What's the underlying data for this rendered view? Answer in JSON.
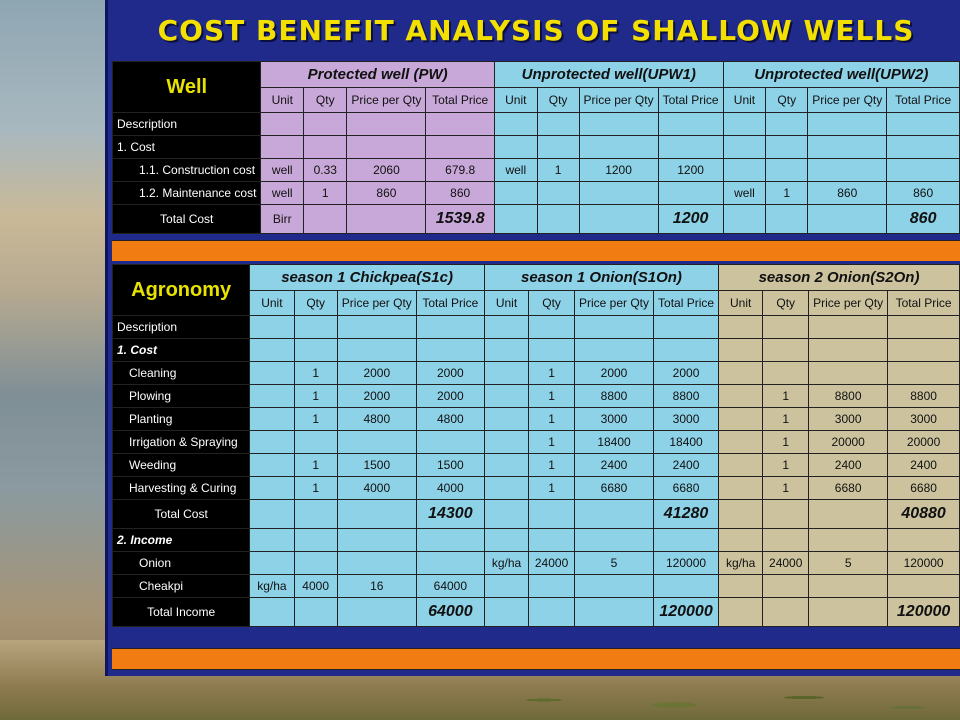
{
  "title": "COST BENEFIT ANALYSIS OF SHALLOW WELLS",
  "well": {
    "section_label": "Well",
    "groups": [
      "Protected well (PW)",
      "Unprotected well(UPW1)",
      "Unprotected well(UPW2)"
    ],
    "sub_headers": [
      "Unit",
      "Qty",
      "Price per Qty",
      "Total Price"
    ],
    "rows": [
      {
        "label": "Description",
        "cells": [
          "",
          "",
          "",
          "",
          "",
          "",
          "",
          "",
          "",
          "",
          "",
          ""
        ]
      },
      {
        "label": "1. Cost",
        "cells": [
          "",
          "",
          "",
          "",
          "",
          "",
          "",
          "",
          "",
          "",
          "",
          ""
        ]
      },
      {
        "label": "1.1. Construction cost",
        "cells": [
          "well",
          "0.33",
          "2060",
          "679.8",
          "well",
          "1",
          "1200",
          "1200",
          "",
          "",
          "",
          ""
        ]
      },
      {
        "label": "1.2. Maintenance cost",
        "cells": [
          "well",
          "1",
          "860",
          "860",
          "",
          "",
          "",
          "",
          "well",
          "1",
          "860",
          "860"
        ]
      },
      {
        "label": "Total Cost",
        "cells": [
          "Birr",
          "",
          "",
          "1539.8",
          "",
          "",
          "",
          "1200",
          "",
          "",
          "",
          "860"
        ]
      }
    ]
  },
  "agronomy": {
    "section_label": "Agronomy",
    "groups": [
      "season 1 Chickpea(S1c)",
      "season 1 Onion(S1On)",
      "season 2 Onion(S2On)"
    ],
    "sub_headers": [
      "Unit",
      "Qty",
      "Price per Qty",
      "Total Price"
    ],
    "rows": [
      {
        "label": "Description",
        "cells": [
          "",
          "",
          "",
          "",
          "",
          "",
          "",
          "",
          "",
          "",
          "",
          ""
        ]
      },
      {
        "label": "1. Cost",
        "cells": [
          "",
          "",
          "",
          "",
          "",
          "",
          "",
          "",
          "",
          "",
          "",
          ""
        ]
      },
      {
        "label": "Cleaning",
        "cells": [
          "",
          "1",
          "2000",
          "2000",
          "",
          "1",
          "2000",
          "2000",
          "",
          "",
          "",
          ""
        ]
      },
      {
        "label": "Plowing",
        "cells": [
          "",
          "1",
          "2000",
          "2000",
          "",
          "1",
          "8800",
          "8800",
          "",
          "1",
          "8800",
          "8800"
        ]
      },
      {
        "label": "Planting",
        "cells": [
          "",
          "1",
          "4800",
          "4800",
          "",
          "1",
          "3000",
          "3000",
          "",
          "1",
          "3000",
          "3000"
        ]
      },
      {
        "label": "Irrigation & Spraying",
        "cells": [
          "",
          "",
          "",
          "",
          "",
          "1",
          "18400",
          "18400",
          "",
          "1",
          "20000",
          "20000"
        ]
      },
      {
        "label": "Weeding",
        "cells": [
          "",
          "1",
          "1500",
          "1500",
          "",
          "1",
          "2400",
          "2400",
          "",
          "1",
          "2400",
          "2400"
        ]
      },
      {
        "label": "Harvesting & Curing",
        "cells": [
          "",
          "1",
          "4000",
          "4000",
          "",
          "1",
          "6680",
          "6680",
          "",
          "1",
          "6680",
          "6680"
        ]
      },
      {
        "label": "Total Cost",
        "cells": [
          "",
          "",
          "",
          "14300",
          "",
          "",
          "",
          "41280",
          "",
          "",
          "",
          "40880"
        ]
      },
      {
        "label": "2. Income",
        "cells": [
          "",
          "",
          "",
          "",
          "",
          "",
          "",
          "",
          "",
          "",
          "",
          ""
        ]
      },
      {
        "label": "Onion",
        "cells": [
          "",
          "",
          "",
          "",
          "kg/ha",
          "24000",
          "5",
          "120000",
          "kg/ha",
          "24000",
          "5",
          "120000"
        ]
      },
      {
        "label": "Cheakpi",
        "cells": [
          "kg/ha",
          "4000",
          "16",
          "64000",
          "",
          "",
          "",
          "",
          "",
          "",
          "",
          ""
        ]
      },
      {
        "label": "Total Income",
        "cells": [
          "",
          "",
          "",
          "64000",
          "",
          "",
          "",
          "120000",
          "",
          "",
          "",
          "120000"
        ]
      }
    ]
  },
  "colors": {
    "panel": "#1f2a8a",
    "title": "#f3e000",
    "pw": "#c8a8d8",
    "blue": "#8ed2e8",
    "tan": "#ccc39e",
    "orange": "#f07c12"
  }
}
